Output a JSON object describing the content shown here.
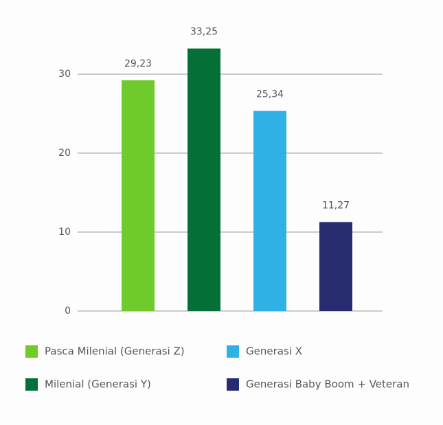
{
  "chart_data": {
    "type": "bar",
    "categories": [
      null,
      null,
      null,
      null
    ],
    "series": [
      {
        "name": "Pasca Milenial (Generasi Z)",
        "color": "#6ecb2b",
        "values": [
          29.23,
          null,
          null,
          null
        ],
        "value_labels": [
          "29,23",
          null,
          null,
          null
        ]
      },
      {
        "name": "Milenial (Generasi Y)",
        "color": "#047038",
        "values": [
          null,
          33.25,
          null,
          null
        ],
        "value_labels": [
          null,
          "33,25",
          null,
          null
        ]
      },
      {
        "name": "Generasi X",
        "color": "#2fb1e6",
        "values": [
          null,
          null,
          25.34,
          null
        ],
        "value_labels": [
          null,
          null,
          "25,34",
          null
        ]
      },
      {
        "name": "Generasi Baby Boom + Veteran",
        "color": "#272b70",
        "values": [
          null,
          null,
          null,
          11.27
        ],
        "value_labels": [
          null,
          null,
          null,
          "11,27"
        ]
      }
    ],
    "ylim": [
      0,
      30
    ],
    "yticks": [
      0,
      10,
      20,
      30
    ],
    "grid": true
  }
}
